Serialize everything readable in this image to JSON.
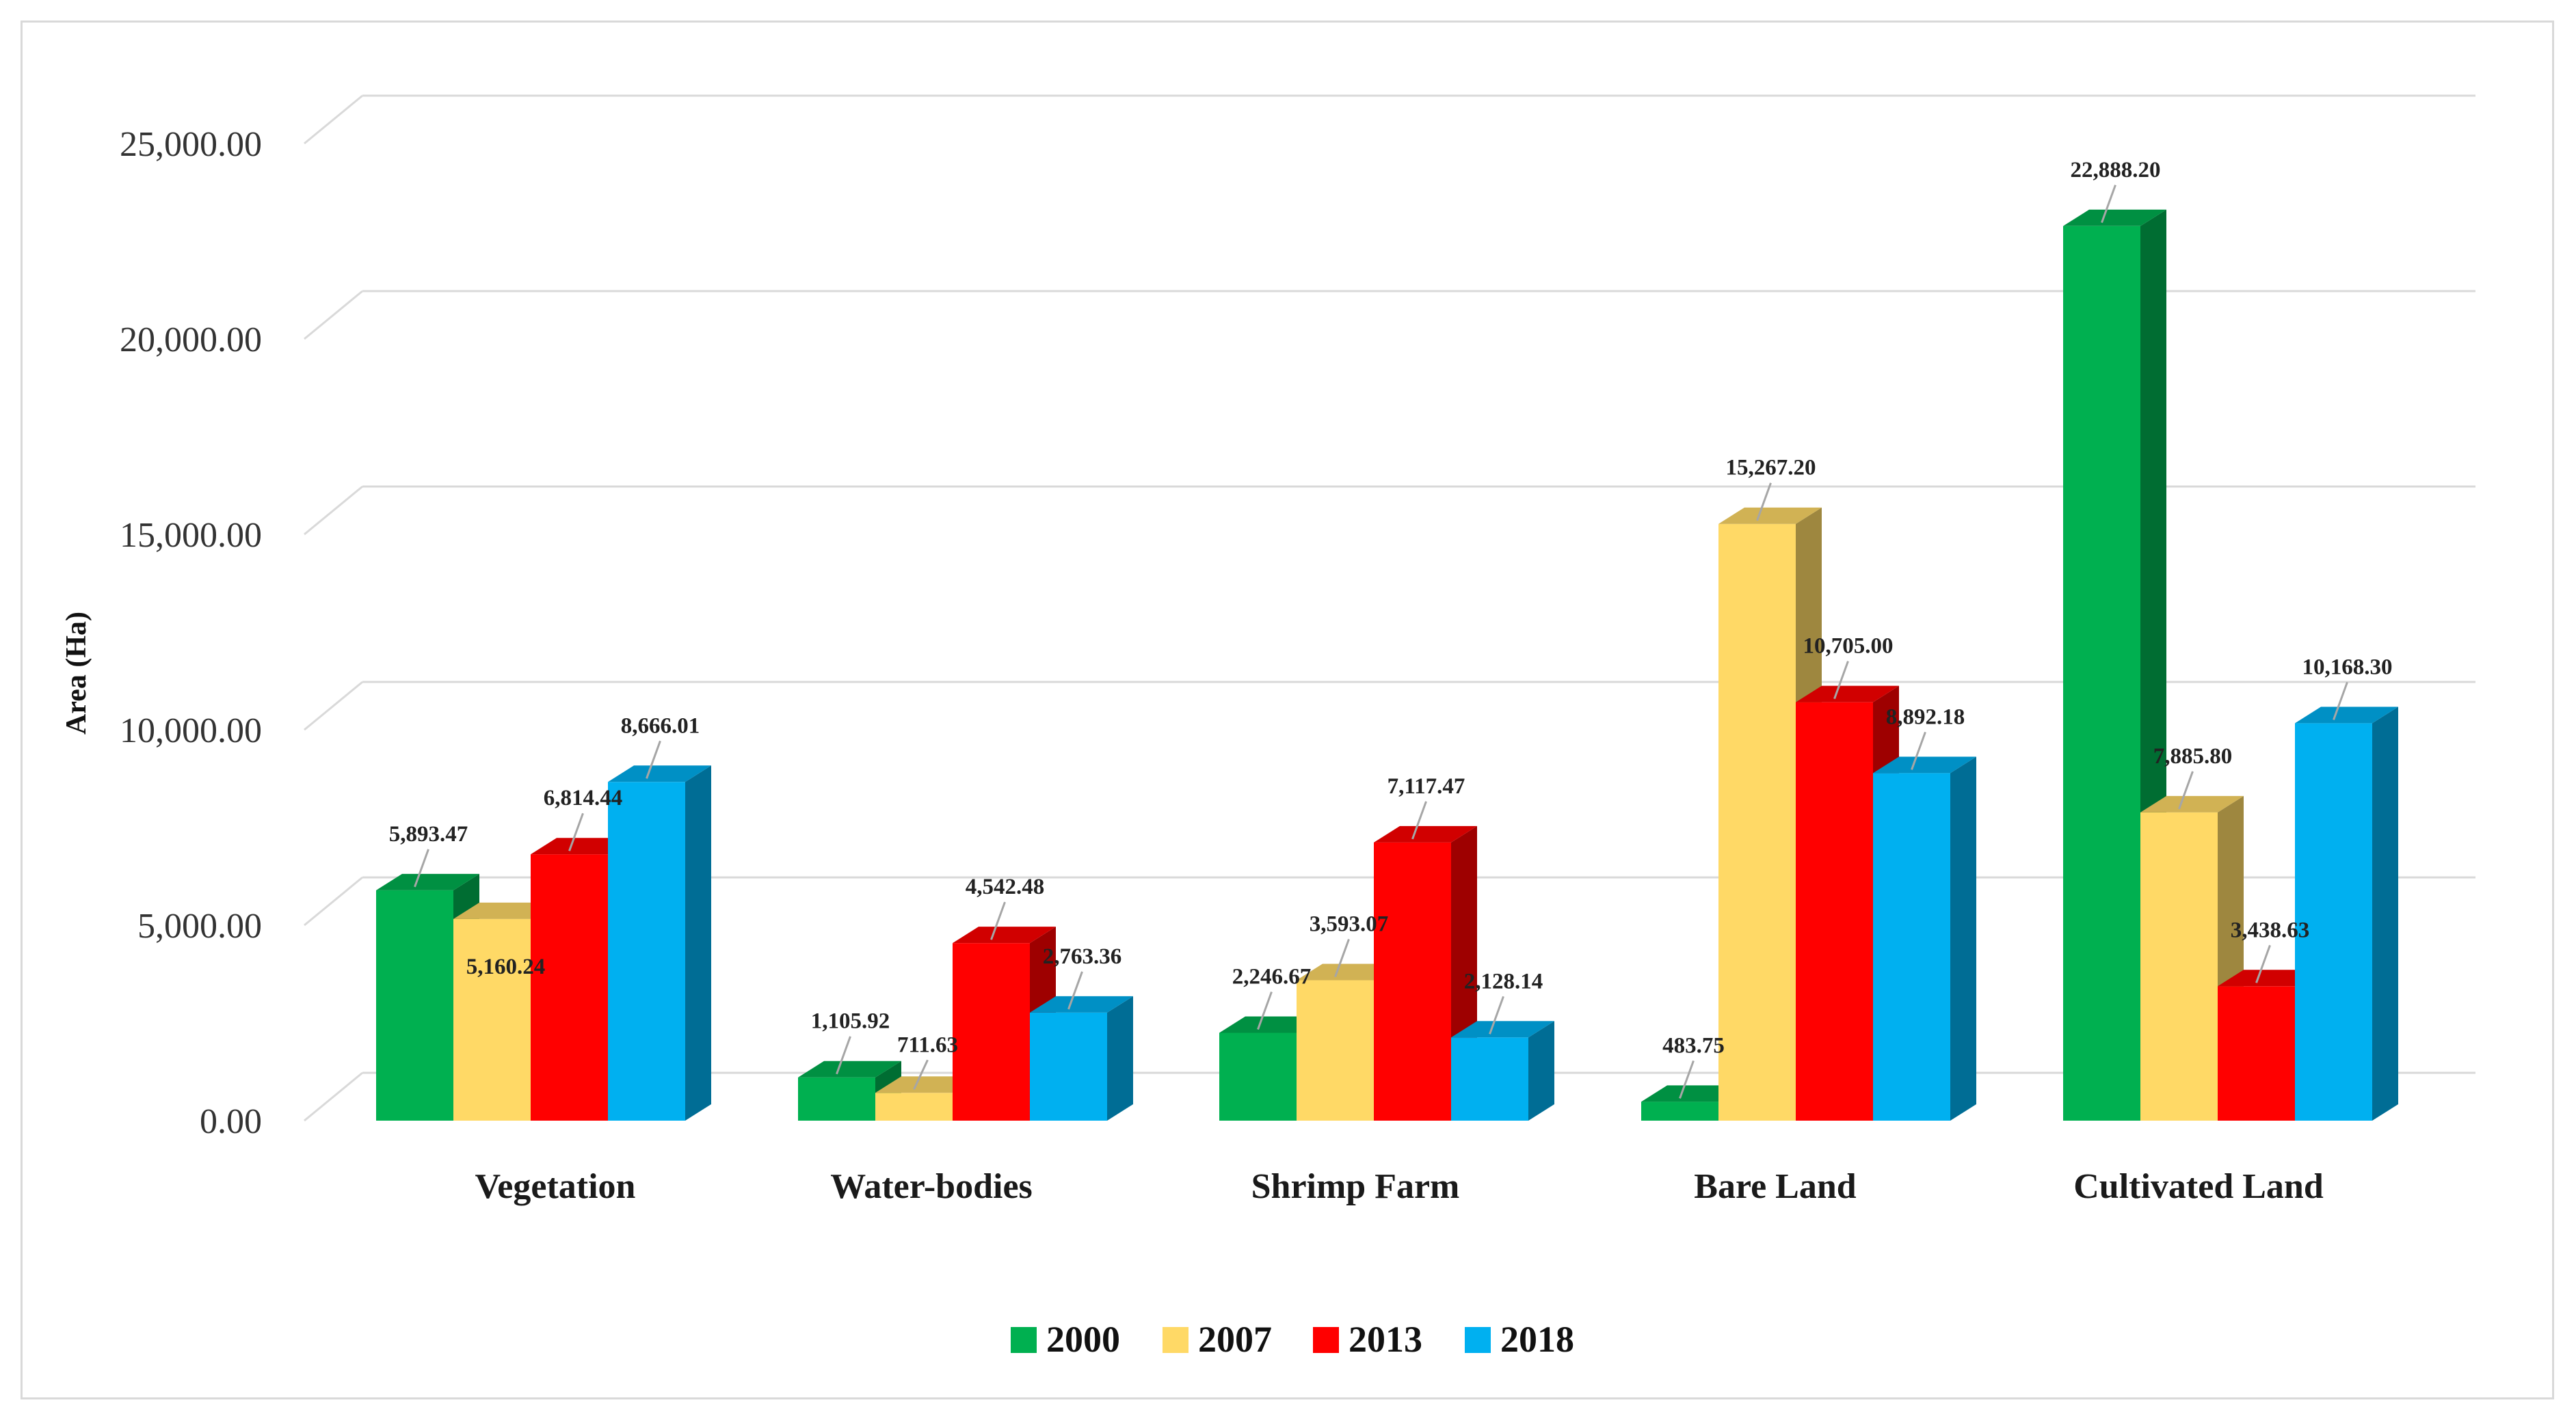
{
  "chart_data": {
    "type": "bar",
    "style": "3d-clustered-column",
    "ylabel": "Area (Ha)",
    "ylim": [
      0,
      25000
    ],
    "yticks": [
      0,
      5000,
      10000,
      15000,
      20000,
      25000
    ],
    "ytick_labels": [
      "0.00",
      "5,000.00",
      "10,000.00",
      "15,000.00",
      "20,000.00",
      "25,000.00"
    ],
    "categories": [
      "Vegetation",
      "Water-bodies",
      "Shrimp Farm",
      "Bare Land",
      "Cultivated Land"
    ],
    "series": [
      {
        "name": "2000",
        "color": "#00b050",
        "values": [
          5893.47,
          1105.92,
          2246.67,
          483.75,
          22888.2
        ],
        "labels": [
          "5,893.47",
          "1,105.92",
          "2,246.67",
          "483.75",
          "22,888.20"
        ]
      },
      {
        "name": "2007",
        "color": "#ffd966",
        "values": [
          5160.24,
          711.63,
          3593.07,
          15267.2,
          7885.8
        ],
        "labels": [
          "5,160.24",
          "711.63",
          "3,593.07",
          "15,267.20",
          "7,885.80"
        ]
      },
      {
        "name": "2013",
        "color": "#ff0000",
        "values": [
          6814.44,
          4542.48,
          7117.47,
          10705.0,
          3438.63
        ],
        "labels": [
          "6,814.44",
          "4,542.48",
          "7,117.47",
          "10,705.00",
          "3,438.63"
        ]
      },
      {
        "name": "2018",
        "color": "#00b0f0",
        "values": [
          8666.01,
          2763.36,
          2128.14,
          8892.18,
          10168.3
        ],
        "labels": [
          "8,666.01",
          "2,763.36",
          "2,128.14",
          "8,892.18",
          "10,168.30"
        ]
      }
    ],
    "gridlines": true,
    "legend_position": "bottom"
  }
}
